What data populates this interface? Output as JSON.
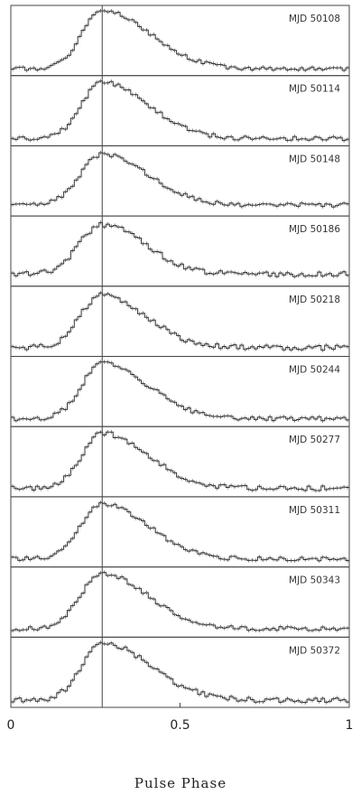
{
  "chart_data": {
    "type": "line",
    "xlabel": "Pulse Phase",
    "ylabel": "",
    "xlim": [
      0,
      1
    ],
    "xticks": [
      {
        "value": 0,
        "label": "0"
      },
      {
        "value": 0.5,
        "label": "0.5"
      },
      {
        "value": 1,
        "label": "1"
      }
    ],
    "reference_line_x": 0.27,
    "line_color": "#333333",
    "grid": false,
    "legend": "none",
    "panels": [
      {
        "label": "MJD 50108",
        "peak_phase": 0.27,
        "peak": 1.0,
        "floor": 0.05,
        "rise": 0.085,
        "decay": 0.2,
        "noise": 0.03,
        "seed": 1
      },
      {
        "label": "MJD 50114",
        "peak_phase": 0.27,
        "peak": 0.98,
        "floor": 0.06,
        "rise": 0.085,
        "decay": 0.19,
        "noise": 0.035,
        "seed": 2
      },
      {
        "label": "MJD 50148",
        "peak_phase": 0.27,
        "peak": 0.95,
        "floor": 0.12,
        "rise": 0.09,
        "decay": 0.19,
        "noise": 0.035,
        "seed": 3
      },
      {
        "label": "MJD 50186",
        "peak_phase": 0.27,
        "peak": 0.95,
        "floor": 0.14,
        "rise": 0.095,
        "decay": 0.18,
        "noise": 0.045,
        "seed": 4
      },
      {
        "label": "MJD 50218",
        "peak_phase": 0.27,
        "peak": 0.95,
        "floor": 0.08,
        "rise": 0.09,
        "decay": 0.18,
        "noise": 0.045,
        "seed": 5
      },
      {
        "label": "MJD 50244",
        "peak_phase": 0.27,
        "peak": 0.98,
        "floor": 0.07,
        "rise": 0.085,
        "decay": 0.19,
        "noise": 0.035,
        "seed": 6
      },
      {
        "label": "MJD 50277",
        "peak_phase": 0.27,
        "peak": 0.98,
        "floor": 0.08,
        "rise": 0.085,
        "decay": 0.19,
        "noise": 0.04,
        "seed": 7
      },
      {
        "label": "MJD 50311",
        "peak_phase": 0.27,
        "peak": 0.98,
        "floor": 0.07,
        "rise": 0.09,
        "decay": 0.19,
        "noise": 0.035,
        "seed": 8
      },
      {
        "label": "MJD 50343",
        "peak_phase": 0.27,
        "peak": 0.98,
        "floor": 0.08,
        "rise": 0.09,
        "decay": 0.19,
        "noise": 0.035,
        "seed": 9
      },
      {
        "label": "MJD 50372",
        "peak_phase": 0.27,
        "peak": 1.0,
        "floor": 0.06,
        "rise": 0.085,
        "decay": 0.2,
        "noise": 0.04,
        "seed": 10
      }
    ]
  }
}
